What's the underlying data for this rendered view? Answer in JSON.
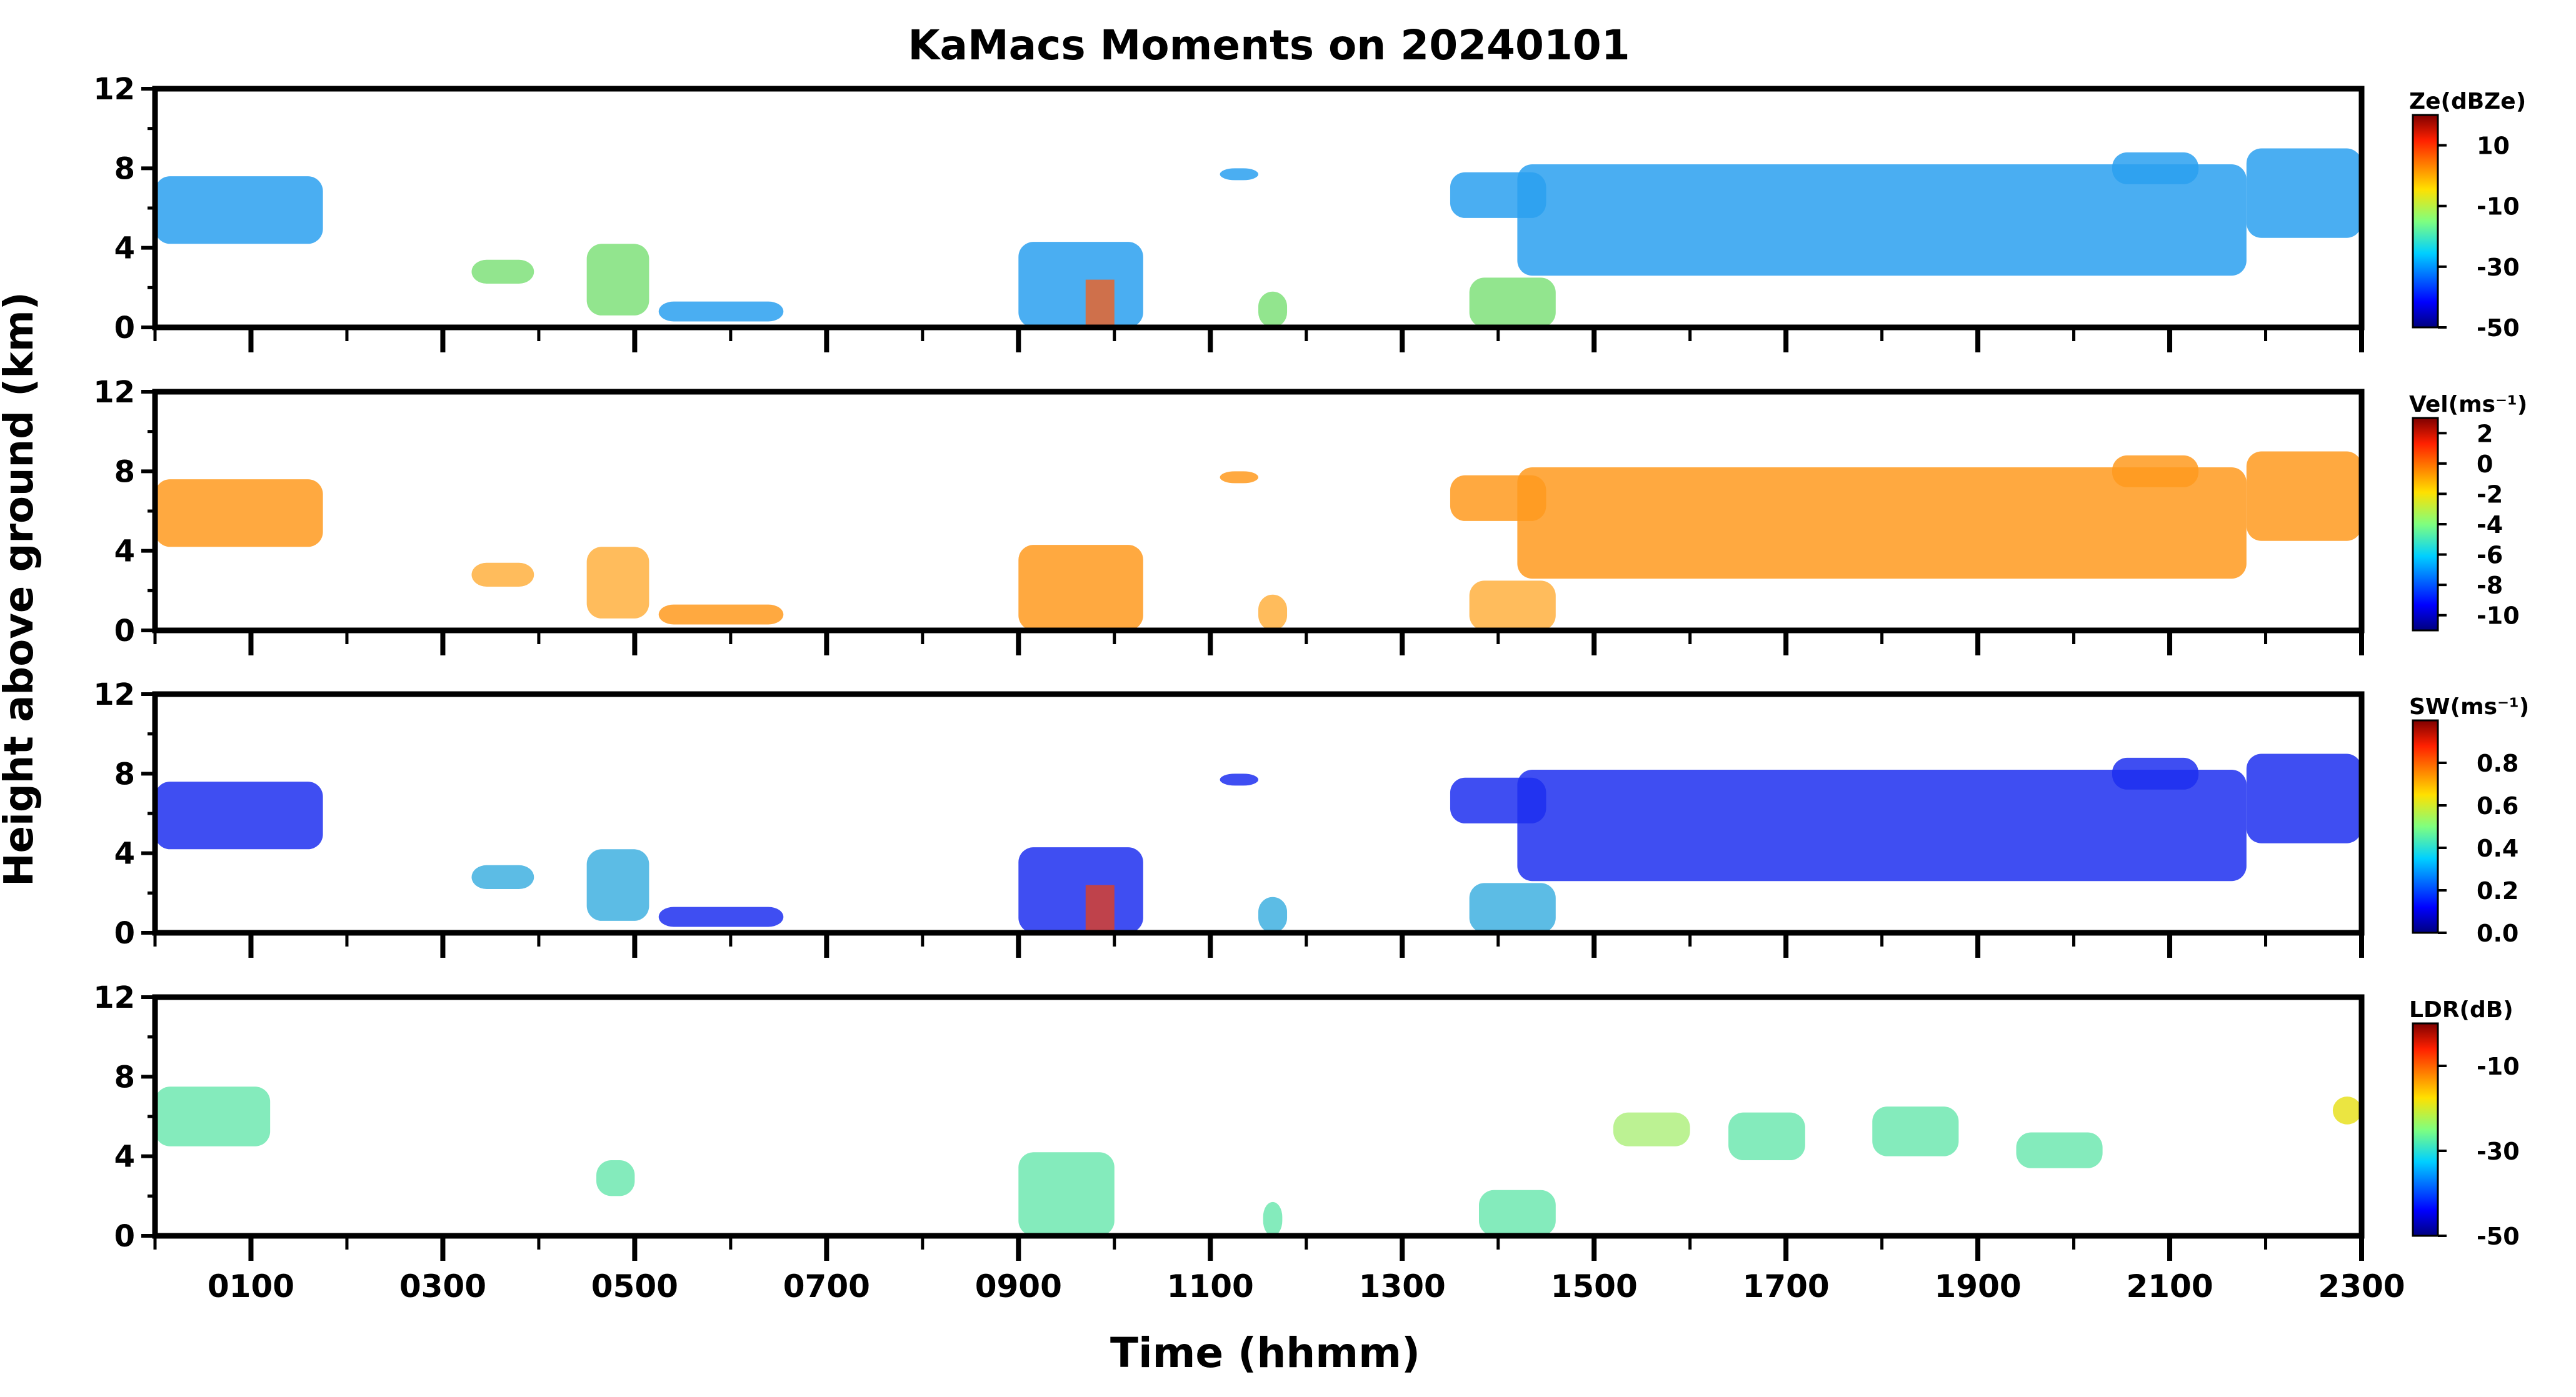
{
  "title": "KaMacs Moments on 20240101",
  "ylabel": "Height above ground (km)",
  "xlabel": "Time (hhmm)",
  "x_ticks": [
    "0100",
    "0300",
    "0500",
    "0700",
    "0900",
    "1100",
    "1300",
    "1500",
    "1700",
    "1900",
    "2100",
    "2300"
  ],
  "chart_data": [
    {
      "type": "heatmap",
      "variable": "Ze",
      "colorbar_label": "Ze(dBZe)",
      "colorbar_ticks": [
        "10",
        "-10",
        "-30",
        "-50"
      ],
      "clim": [
        -50,
        20
      ],
      "ylim": [
        0,
        12
      ],
      "xlim_hours": [
        0,
        23
      ],
      "yticks": [
        "12",
        "8",
        "4",
        "0"
      ],
      "colormap": "jet"
    },
    {
      "type": "heatmap",
      "variable": "Vel",
      "colorbar_label": "Vel(ms⁻¹)",
      "colorbar_ticks": [
        "2",
        "0",
        "-2",
        "-4",
        "-6",
        "-8",
        "-10"
      ],
      "clim": [
        -11,
        3
      ],
      "ylim": [
        0,
        12
      ],
      "xlim_hours": [
        0,
        23
      ],
      "yticks": [
        "12",
        "8",
        "4",
        "0"
      ],
      "colormap": "jet"
    },
    {
      "type": "heatmap",
      "variable": "SW",
      "colorbar_label": "SW(ms⁻¹)",
      "colorbar_ticks": [
        "0.8",
        "0.6",
        "0.4",
        "0.2",
        "0.0"
      ],
      "clim": [
        0,
        1
      ],
      "ylim": [
        0,
        12
      ],
      "xlim_hours": [
        0,
        23
      ],
      "yticks": [
        "12",
        "8",
        "4",
        "0"
      ],
      "colormap": "jet"
    },
    {
      "type": "heatmap",
      "variable": "LDR",
      "colorbar_label": "LDR(dB)",
      "colorbar_ticks": [
        "-10",
        "-30",
        "-50"
      ],
      "clim": [
        -50,
        0
      ],
      "ylim": [
        0,
        12
      ],
      "xlim_hours": [
        0,
        23
      ],
      "yticks": [
        "12",
        "8",
        "4",
        "0"
      ],
      "colormap": "jet"
    }
  ],
  "colors": {
    "ze_main": "#2aa0f0",
    "ze_alt": "#7fe07a",
    "ze_hot": "#f06020",
    "vel_main": "#ff9a1e",
    "vel_alt": "#ffb040",
    "sw_main": "#1d2ff0",
    "sw_alt": "#3fb0e0",
    "sw_hot": "#e04020",
    "ldr_main": "#6ee8b0",
    "ldr_alt": "#b0f080",
    "ldr_hot": "#e8e020"
  }
}
